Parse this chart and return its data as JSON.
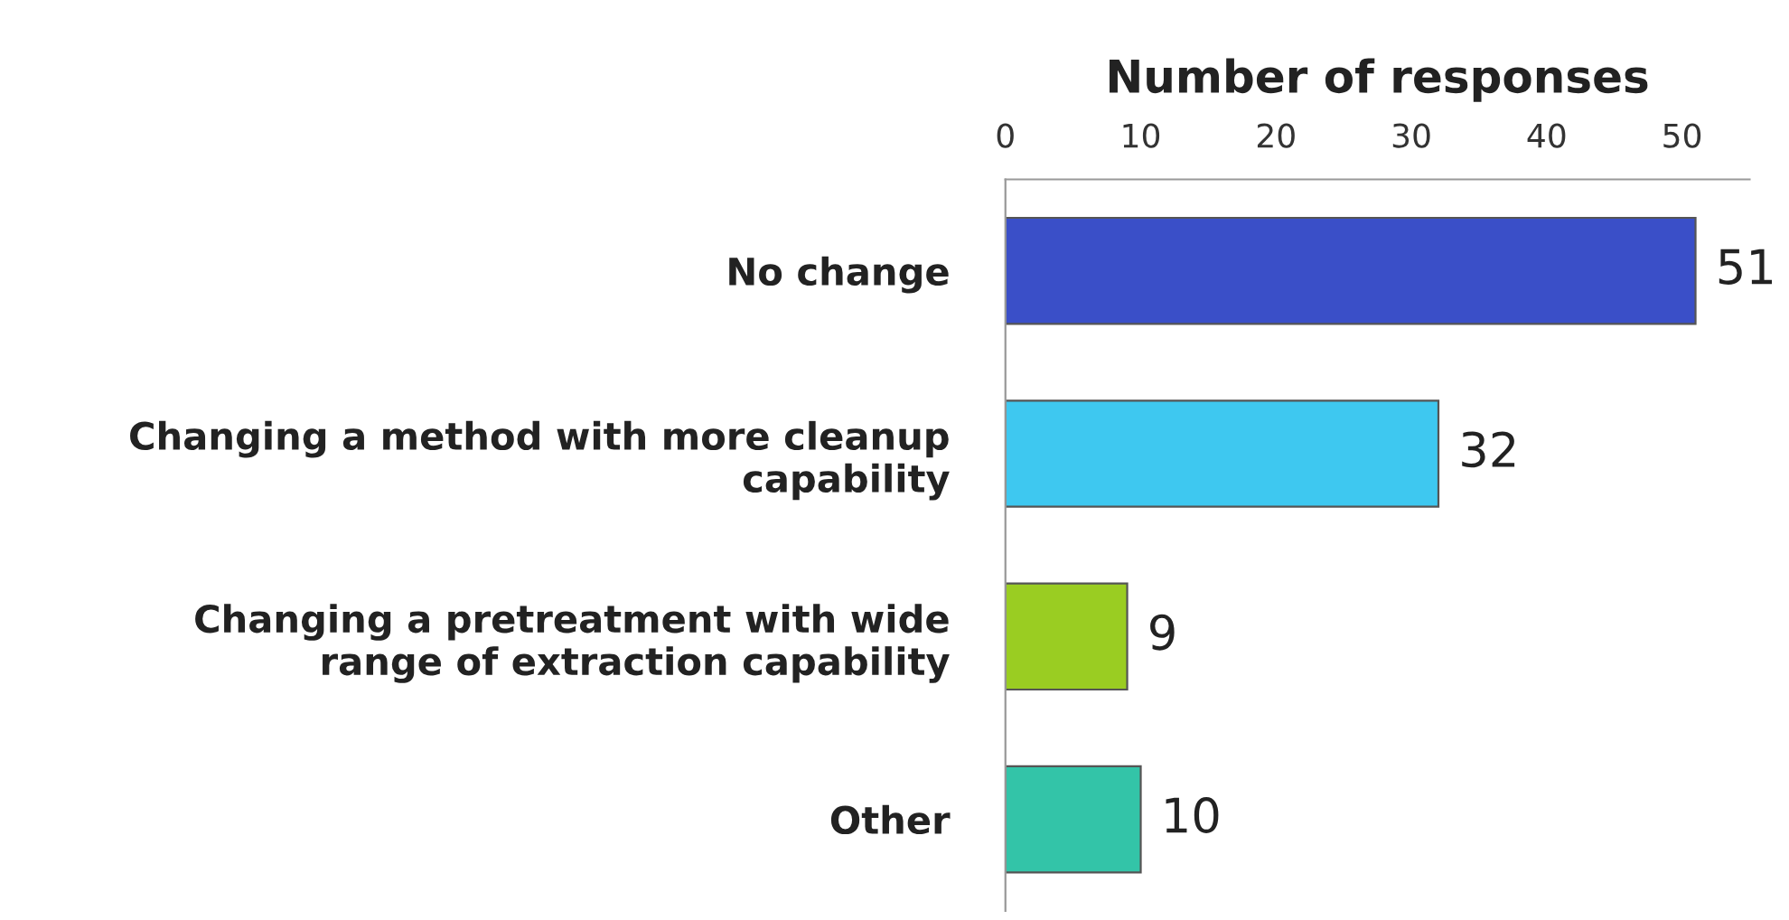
{
  "chart_data": {
    "type": "bar",
    "orientation": "horizontal",
    "xlabel": "Number of responses",
    "categories": [
      "No change",
      "Changing a method with more cleanup capability",
      "Changing a pretreatment with wide range of extraction capability",
      "Other"
    ],
    "values": [
      51,
      32,
      9,
      10
    ],
    "colors": [
      "#3a4fc8",
      "#3ec8f0",
      "#9acd22",
      "#33c4a8"
    ],
    "xlim": [
      0,
      55
    ],
    "xticks": [
      0,
      10,
      20,
      30,
      40,
      50
    ],
    "data_labels": true,
    "grid": false,
    "legend": false
  }
}
